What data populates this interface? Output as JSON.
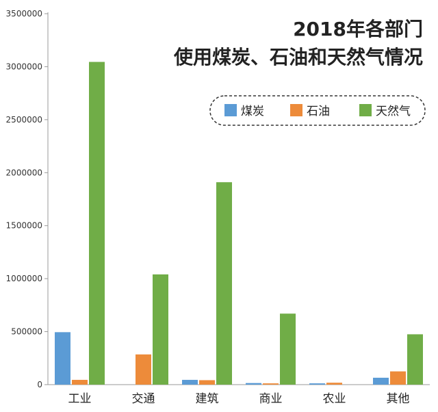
{
  "chart_data": {
    "type": "bar",
    "title": "2018年各部门",
    "subtitle": "使用煤炭、石油和天然气情况",
    "categories": [
      "工业",
      "交通",
      "建筑",
      "商业",
      "农业",
      "其他"
    ],
    "series": [
      {
        "name": "煤炭",
        "color": "#5b9bd5",
        "values": [
          495000,
          0,
          45000,
          15000,
          12000,
          65000
        ]
      },
      {
        "name": "石油",
        "color": "#ed8b3a",
        "values": [
          45000,
          285000,
          42000,
          12000,
          18000,
          125000
        ]
      },
      {
        "name": "天然气",
        "color": "#70ad47",
        "values": [
          3045000,
          1040000,
          1910000,
          670000,
          0,
          475000
        ]
      }
    ],
    "yticks": [
      "0",
      "500000",
      "1000000",
      "1500000",
      "2000000",
      "2500000",
      "3000000",
      "3500000"
    ],
    "ylim": [
      0,
      3500000
    ],
    "xlabel": "",
    "ylabel": "",
    "grid": false,
    "legend_position": "top-right"
  }
}
